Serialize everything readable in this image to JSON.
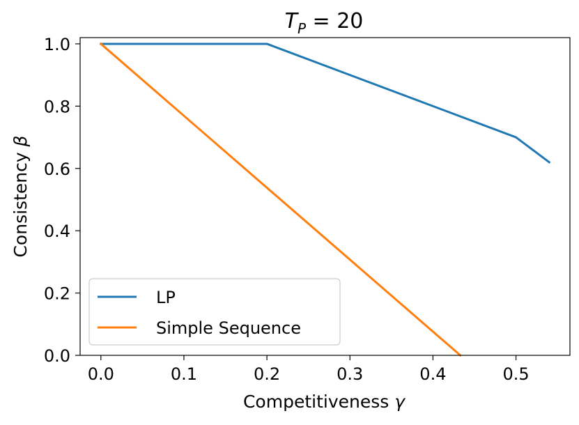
{
  "chart_data": {
    "type": "line",
    "title": {
      "symbol": "T",
      "subscript": "P",
      "rest": " = 20"
    },
    "xlabel": {
      "text": "Competitiveness ",
      "symbol": "γ"
    },
    "ylabel": {
      "text": "Consistency ",
      "symbol": "β"
    },
    "xlim": [
      -0.025,
      0.565
    ],
    "ylim": [
      0.0,
      1.02
    ],
    "xticks": [
      0.0,
      0.1,
      0.2,
      0.3,
      0.4,
      0.5
    ],
    "xtick_labels": [
      "0.0",
      "0.1",
      "0.2",
      "0.3",
      "0.4",
      "0.5"
    ],
    "yticks": [
      0.0,
      0.2,
      0.4,
      0.6,
      0.8,
      1.0
    ],
    "ytick_labels": [
      "0.0",
      "0.2",
      "0.4",
      "0.6",
      "0.8",
      "1.0"
    ],
    "grid": false,
    "legend_position": "lower-left",
    "series": [
      {
        "name": "LP",
        "color": "#1f77b4",
        "x": [
          0.0,
          0.2,
          0.5,
          0.54
        ],
        "y": [
          1.0,
          1.0,
          0.7,
          0.62
        ]
      },
      {
        "name": "Simple Sequence",
        "color": "#ff7f0e",
        "x": [
          0.0,
          0.433
        ],
        "y": [
          1.0,
          0.0
        ]
      }
    ]
  }
}
